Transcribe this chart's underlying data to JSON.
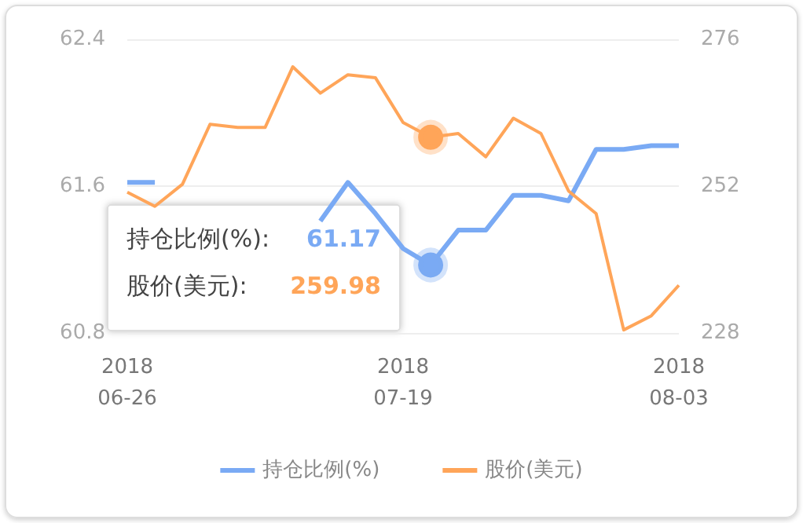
{
  "chart_data": {
    "type": "line",
    "categories": [
      "2018\n06-26",
      null,
      null,
      null,
      null,
      null,
      null,
      null,
      null,
      null,
      "2018\n07-19",
      null,
      null,
      null,
      null,
      null,
      null,
      null,
      null,
      null,
      "2018\n08-03"
    ],
    "series": [
      {
        "name": "持仓比例(%)",
        "color": "#7aaaf4",
        "values": [
          61.62,
          61.62,
          null,
          null,
          null,
          null,
          null,
          61.41,
          61.62,
          61.45,
          61.26,
          61.17,
          61.36,
          61.36,
          61.55,
          61.55,
          61.52,
          61.8,
          61.8,
          61.82,
          61.82
        ]
      },
      {
        "name": "股价(美元)",
        "color": "#ffa559",
        "axis": "y2",
        "values": [
          251.0,
          248.7,
          252.3,
          262.1,
          261.6,
          261.6,
          271.5,
          267.2,
          270.2,
          269.7,
          262.4,
          259.98,
          260.6,
          256.8,
          263.1,
          260.6,
          251.2,
          247.5,
          228.5,
          230.8,
          235.8
        ]
      }
    ],
    "ylim": [
      60.8,
      62.4
    ],
    "yticks": [
      60.8,
      61.6,
      62.4
    ],
    "y2lim": [
      228,
      276
    ],
    "y2ticks": [
      228,
      252,
      276
    ],
    "grid": "y",
    "legend": "bottom",
    "marker": "none",
    "annotations": [
      "持仓比例(%):",
      "61.17",
      "股价(美元):",
      "259.98"
    ]
  }
}
